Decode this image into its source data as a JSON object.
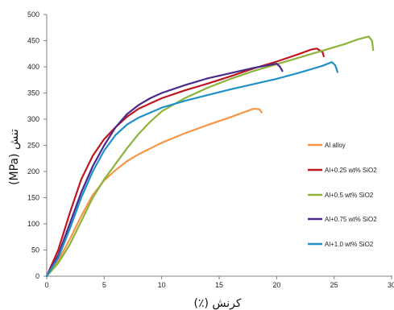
{
  "chart_data": {
    "type": "line",
    "title": "",
    "xlabel": "کرنش (٪)",
    "ylabel": "تنش (MPa)",
    "xlim": [
      0,
      30
    ],
    "ylim": [
      0,
      500
    ],
    "xticks": [
      0,
      5,
      10,
      15,
      20,
      25,
      30
    ],
    "yticks": [
      0,
      50,
      100,
      150,
      200,
      250,
      300,
      350,
      400,
      450,
      500
    ],
    "grid": false,
    "legend_position": "right",
    "series": [
      {
        "name": "Al alloy",
        "color": "#F79646",
        "x": [
          0,
          1,
          2,
          3,
          4,
          5,
          6,
          7,
          8,
          10,
          12,
          14,
          16,
          17,
          18,
          18.5,
          18.7
        ],
        "y": [
          0,
          30,
          70,
          115,
          155,
          183,
          203,
          220,
          233,
          255,
          273,
          289,
          304,
          312,
          320,
          319,
          313
        ]
      },
      {
        "name": "Al+0.25 wt% SiO2",
        "color": "#C0161F",
        "x": [
          0,
          1,
          2,
          3,
          4,
          5,
          6,
          7,
          8,
          9,
          10,
          12,
          14,
          16,
          18,
          20,
          22,
          23,
          23.5,
          24,
          24.1
        ],
        "y": [
          0,
          50,
          120,
          185,
          230,
          262,
          285,
          305,
          320,
          330,
          340,
          355,
          368,
          382,
          397,
          410,
          425,
          433,
          435,
          428,
          420
        ]
      },
      {
        "name": "Al+0.5 wt% SiO2",
        "color": "#8DB33A",
        "x": [
          0,
          1,
          2,
          3,
          4,
          5,
          6,
          7,
          8,
          9,
          10,
          12,
          14,
          16,
          18,
          20,
          22,
          24,
          26,
          27,
          28,
          28.3,
          28.4
        ],
        "y": [
          0,
          25,
          60,
          105,
          150,
          185,
          215,
          245,
          272,
          295,
          315,
          340,
          360,
          377,
          392,
          405,
          418,
          431,
          444,
          452,
          458,
          450,
          432
        ]
      },
      {
        "name": "Al+0.75 wt% SiO2",
        "color": "#4B2A8C",
        "x": [
          0,
          1,
          2,
          3,
          4,
          5,
          6,
          7,
          8,
          9,
          10,
          12,
          14,
          16,
          18,
          19.5,
          20,
          20.3,
          20.5
        ],
        "y": [
          0,
          40,
          100,
          160,
          210,
          250,
          285,
          310,
          327,
          340,
          350,
          365,
          378,
          388,
          398,
          404,
          406,
          400,
          392
        ]
      },
      {
        "name": "Al+1.0 wt% SiO2",
        "color": "#2290C8",
        "x": [
          0,
          1,
          2,
          3,
          4,
          5,
          6,
          7,
          8,
          10,
          12,
          14,
          16,
          18,
          20,
          22,
          24,
          24.8,
          25.1,
          25.3
        ],
        "y": [
          0,
          35,
          90,
          150,
          200,
          240,
          270,
          290,
          303,
          322,
          335,
          346,
          357,
          367,
          377,
          389,
          402,
          409,
          403,
          390
        ]
      }
    ]
  }
}
